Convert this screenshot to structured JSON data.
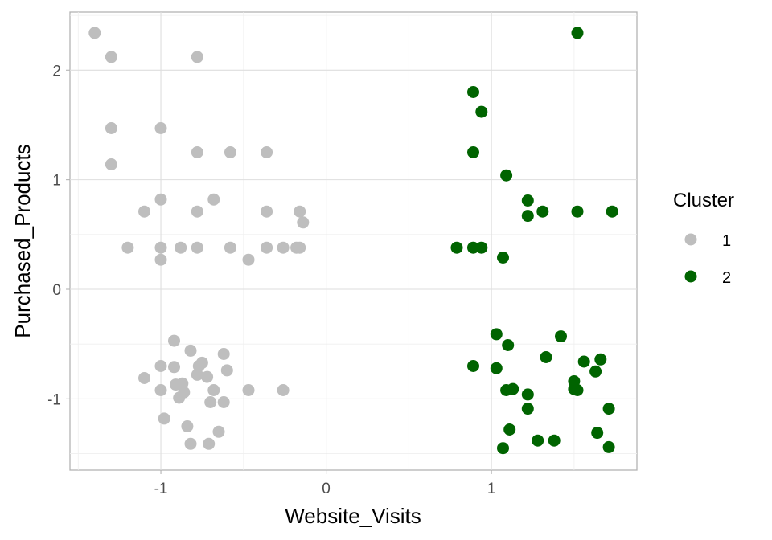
{
  "chart_data": {
    "type": "scatter",
    "xlabel": "Website_Visits",
    "ylabel": "Purchased_Products",
    "xlim": [
      -1.55,
      1.88
    ],
    "ylim": [
      -1.65,
      2.53
    ],
    "x_ticks": [
      -1,
      0,
      1
    ],
    "x_tick_labels": [
      "-1",
      "0",
      "1"
    ],
    "y_ticks": [
      -1,
      0,
      1,
      2
    ],
    "y_tick_labels": [
      "-1",
      "0",
      "1",
      "2"
    ],
    "grid": true,
    "legend": {
      "title": "Cluster",
      "position": "right"
    },
    "series": [
      {
        "name": "1",
        "color": "#bebebe",
        "points": [
          [
            -1.4,
            2.34
          ],
          [
            -1.3,
            2.12
          ],
          [
            -0.78,
            2.12
          ],
          [
            -1.3,
            1.47
          ],
          [
            -1.0,
            1.47
          ],
          [
            -1.3,
            1.14
          ],
          [
            -0.78,
            1.25
          ],
          [
            -0.58,
            1.25
          ],
          [
            -0.36,
            1.25
          ],
          [
            -1.0,
            0.82
          ],
          [
            -0.68,
            0.82
          ],
          [
            -1.1,
            0.71
          ],
          [
            -0.78,
            0.71
          ],
          [
            -0.36,
            0.71
          ],
          [
            -0.16,
            0.71
          ],
          [
            -0.14,
            0.61
          ],
          [
            -1.2,
            0.38
          ],
          [
            -1.0,
            0.38
          ],
          [
            -0.88,
            0.38
          ],
          [
            -0.78,
            0.38
          ],
          [
            -0.58,
            0.38
          ],
          [
            -0.36,
            0.38
          ],
          [
            -0.26,
            0.38
          ],
          [
            -0.16,
            0.38
          ],
          [
            -0.18,
            0.38
          ],
          [
            -1.0,
            0.27
          ],
          [
            -0.47,
            0.27
          ],
          [
            -0.92,
            -0.47
          ],
          [
            -0.82,
            -0.56
          ],
          [
            -0.62,
            -0.59
          ],
          [
            -0.75,
            -0.67
          ],
          [
            -1.0,
            -0.7
          ],
          [
            -0.92,
            -0.71
          ],
          [
            -0.77,
            -0.7
          ],
          [
            -0.6,
            -0.74
          ],
          [
            -1.1,
            -0.81
          ],
          [
            -0.78,
            -0.78
          ],
          [
            -0.72,
            -0.8
          ],
          [
            -0.91,
            -0.87
          ],
          [
            -0.87,
            -0.86
          ],
          [
            -1.0,
            -0.92
          ],
          [
            -0.86,
            -0.94
          ],
          [
            -0.68,
            -0.92
          ],
          [
            -0.47,
            -0.92
          ],
          [
            -0.26,
            -0.92
          ],
          [
            -0.89,
            -0.99
          ],
          [
            -0.7,
            -1.03
          ],
          [
            -0.62,
            -1.03
          ],
          [
            -0.98,
            -1.18
          ],
          [
            -0.84,
            -1.25
          ],
          [
            -0.65,
            -1.3
          ],
          [
            -0.82,
            -1.41
          ],
          [
            -0.71,
            -1.41
          ]
        ]
      },
      {
        "name": "2",
        "color": "#006400",
        "points": [
          [
            1.52,
            2.34
          ],
          [
            0.89,
            1.8
          ],
          [
            0.94,
            1.62
          ],
          [
            0.89,
            1.25
          ],
          [
            1.09,
            1.04
          ],
          [
            1.22,
            0.81
          ],
          [
            1.22,
            0.67
          ],
          [
            1.31,
            0.71
          ],
          [
            1.52,
            0.71
          ],
          [
            1.73,
            0.71
          ],
          [
            0.79,
            0.38
          ],
          [
            0.89,
            0.38
          ],
          [
            0.94,
            0.38
          ],
          [
            1.07,
            0.29
          ],
          [
            1.03,
            -0.41
          ],
          [
            1.42,
            -0.43
          ],
          [
            1.1,
            -0.51
          ],
          [
            1.33,
            -0.62
          ],
          [
            1.66,
            -0.64
          ],
          [
            1.56,
            -0.66
          ],
          [
            0.89,
            -0.7
          ],
          [
            1.03,
            -0.72
          ],
          [
            1.63,
            -0.75
          ],
          [
            1.5,
            -0.84
          ],
          [
            1.13,
            -0.91
          ],
          [
            1.09,
            -0.92
          ],
          [
            1.5,
            -0.91
          ],
          [
            1.52,
            -0.92
          ],
          [
            1.22,
            -0.96
          ],
          [
            1.22,
            -1.09
          ],
          [
            1.71,
            -1.09
          ],
          [
            1.11,
            -1.28
          ],
          [
            1.64,
            -1.31
          ],
          [
            1.28,
            -1.38
          ],
          [
            1.38,
            -1.38
          ],
          [
            1.07,
            -1.45
          ],
          [
            1.71,
            -1.44
          ]
        ]
      }
    ]
  }
}
